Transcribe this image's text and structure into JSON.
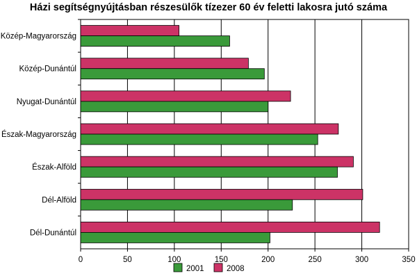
{
  "chart_data": {
    "type": "bar",
    "orientation": "horizontal",
    "title": "Házi segítségnyújtásban részesülők tízezer 60 év feletti lakosra jutó száma",
    "categories": [
      "Közép-Magyarország",
      "Közép-Dunántúl",
      "Nyugat-Dunántúl",
      "Észak-Magyarország",
      "Észak-Alföld",
      "Dél-Alföld",
      "Dél-Dunántúl"
    ],
    "series": [
      {
        "name": "2001",
        "color": "#3a9a3a",
        "values": [
          159,
          196,
          200,
          253,
          274,
          226,
          202
        ]
      },
      {
        "name": "2008",
        "color": "#cc3366",
        "values": [
          105,
          179,
          224,
          275,
          291,
          301,
          319
        ]
      }
    ],
    "xlim": [
      0,
      350
    ],
    "xticks": [
      "0",
      "50",
      "100",
      "150",
      "200",
      "250",
      "300",
      "350"
    ],
    "grid": true,
    "legend_position": "bottom"
  }
}
